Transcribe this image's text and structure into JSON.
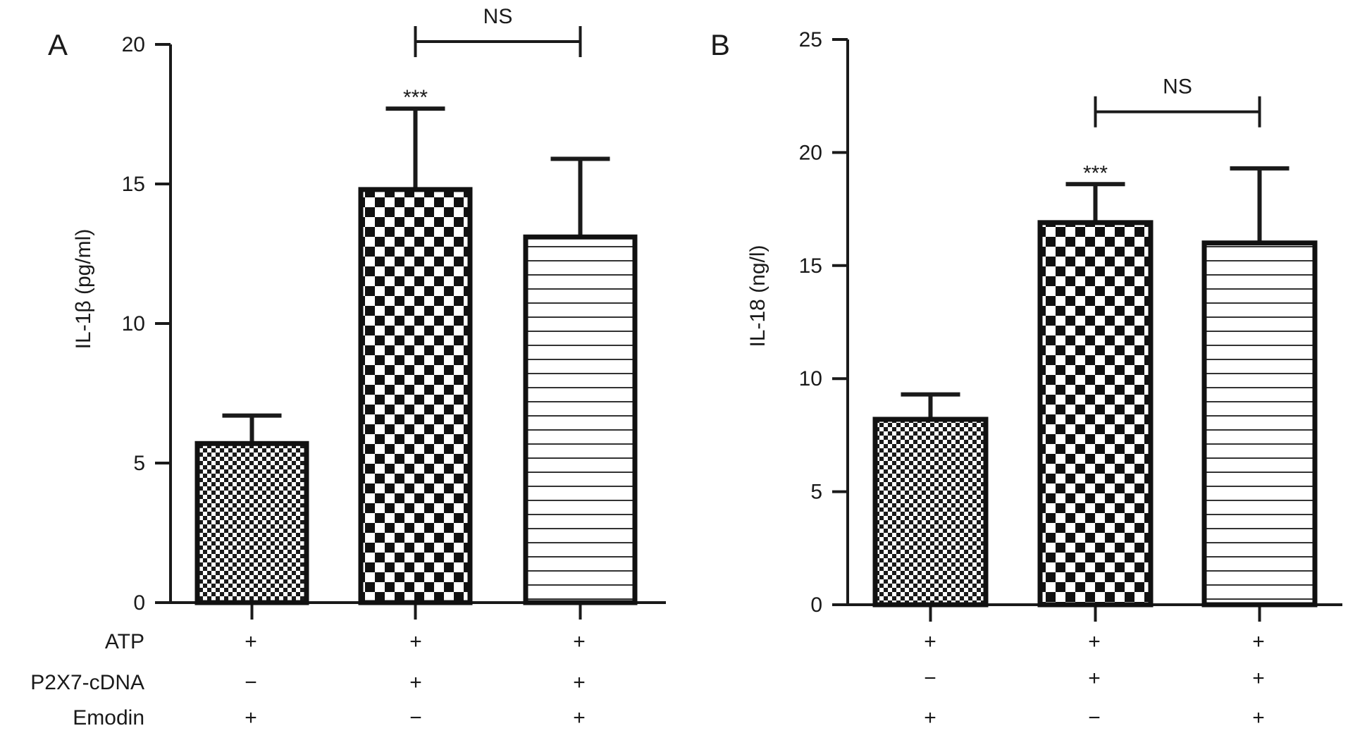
{
  "chart_data": [
    {
      "type": "bar",
      "panel_label": "A",
      "ylabel": "IL-1β (pg/ml)",
      "ylim": [
        0,
        20
      ],
      "yticks": [
        0,
        5,
        10,
        15,
        20
      ],
      "values": [
        5.7,
        14.8,
        13.1
      ],
      "errors": [
        1.0,
        2.9,
        2.8
      ],
      "patterns": [
        "fine-check",
        "coarse-check",
        "horizontal-lines"
      ],
      "significance": [
        "",
        "***",
        ""
      ],
      "bracket": {
        "from": 1,
        "to": 2,
        "label": "NS",
        "y": 20.1
      },
      "conditions": [
        {
          "name": "ATP",
          "values": [
            "+",
            "+",
            "+"
          ]
        },
        {
          "name": "P2X7-cDNA",
          "values": [
            "−",
            "+",
            "+"
          ]
        },
        {
          "name": "Emodin",
          "values": [
            "+",
            "−",
            "+"
          ]
        }
      ]
    },
    {
      "type": "bar",
      "panel_label": "B",
      "ylabel": "IL-18 (ng/l)",
      "ylim": [
        0,
        25
      ],
      "yticks": [
        0,
        5,
        10,
        15,
        20,
        25
      ],
      "values": [
        8.2,
        16.9,
        16.0
      ],
      "errors": [
        1.1,
        1.7,
        3.3
      ],
      "patterns": [
        "fine-check",
        "coarse-check",
        "horizontal-lines"
      ],
      "significance": [
        "",
        "***",
        ""
      ],
      "bracket": {
        "from": 1,
        "to": 2,
        "label": "NS",
        "y": 21.8
      },
      "conditions": [
        {
          "name": "ATP",
          "values": [
            "+",
            "+",
            "+"
          ]
        },
        {
          "name": "P2X7-cDNA",
          "values": [
            "−",
            "+",
            "+"
          ]
        },
        {
          "name": "Emodin",
          "values": [
            "+",
            "−",
            "+"
          ]
        }
      ]
    }
  ]
}
